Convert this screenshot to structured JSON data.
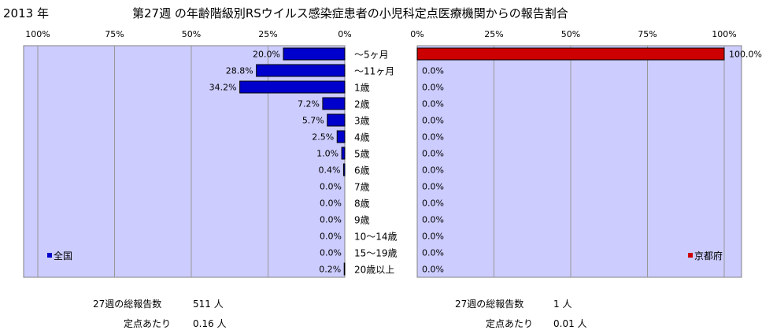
{
  "header": {
    "year": "2013 年",
    "title": "第27週 の年齢階級別RSウイルス感染症患者の小児科定点医療機関からの報告割合"
  },
  "chart_data": [
    {
      "type": "bar",
      "orientation": "horizontal",
      "direction": "right-to-left",
      "categories": [
        "～5ヶ月",
        "～11ヶ月",
        "1歳",
        "2歳",
        "3歳",
        "4歳",
        "5歳",
        "6歳",
        "7歳",
        "8歳",
        "9歳",
        "10～14歳",
        "15～19歳",
        "20歳以上"
      ],
      "series": [
        {
          "name": "全国",
          "values": [
            20.0,
            28.8,
            34.2,
            7.2,
            5.7,
            2.5,
            1.0,
            0.4,
            0.0,
            0.0,
            0.0,
            0.0,
            0.0,
            0.2
          ],
          "labels": [
            "20.0%",
            "28.8%",
            "34.2%",
            "7.2%",
            "5.7%",
            "2.5%",
            "1.0%",
            "0.4%",
            "0.0%",
            "0.0%",
            "0.0%",
            "0.0%",
            "0.0%",
            "0.2%"
          ],
          "color": "#0000CC"
        }
      ],
      "xlim": [
        0,
        100
      ],
      "tick_labels": [
        "100%",
        "75%",
        "50%",
        "25%",
        "0%"
      ],
      "grid": true,
      "legend": "bottom-left"
    },
    {
      "type": "bar",
      "orientation": "horizontal",
      "direction": "left-to-right",
      "categories": [
        "～5ヶ月",
        "～11ヶ月",
        "1歳",
        "2歳",
        "3歳",
        "4歳",
        "5歳",
        "6歳",
        "7歳",
        "8歳",
        "9歳",
        "10～14歳",
        "15～19歳",
        "20歳以上"
      ],
      "series": [
        {
          "name": "京都府",
          "values": [
            100.0,
            0.0,
            0.0,
            0.0,
            0.0,
            0.0,
            0.0,
            0.0,
            0.0,
            0.0,
            0.0,
            0.0,
            0.0,
            0.0
          ],
          "labels": [
            "100.0%",
            "0.0%",
            "0.0%",
            "0.0%",
            "0.0%",
            "0.0%",
            "0.0%",
            "0.0%",
            "0.0%",
            "0.0%",
            "0.0%",
            "0.0%",
            "0.0%",
            "0.0%"
          ],
          "color": "#CC0000"
        }
      ],
      "xlim": [
        0,
        100
      ],
      "tick_labels": [
        "0%",
        "25%",
        "50%",
        "75%",
        "100%"
      ],
      "grid": true,
      "legend": "bottom-right"
    }
  ],
  "colors": {
    "plot_bg": "#CCCCFF",
    "grid": "#999999"
  },
  "footer": {
    "left": {
      "total_label": "27週の総報告数",
      "total_value": "511 人",
      "per_label": "定点あたり",
      "per_value": "0.16 人"
    },
    "right": {
      "total_label": "27週の総報告数",
      "total_value": "1 人",
      "per_label": "定点あたり",
      "per_value": "0.01 人"
    }
  }
}
